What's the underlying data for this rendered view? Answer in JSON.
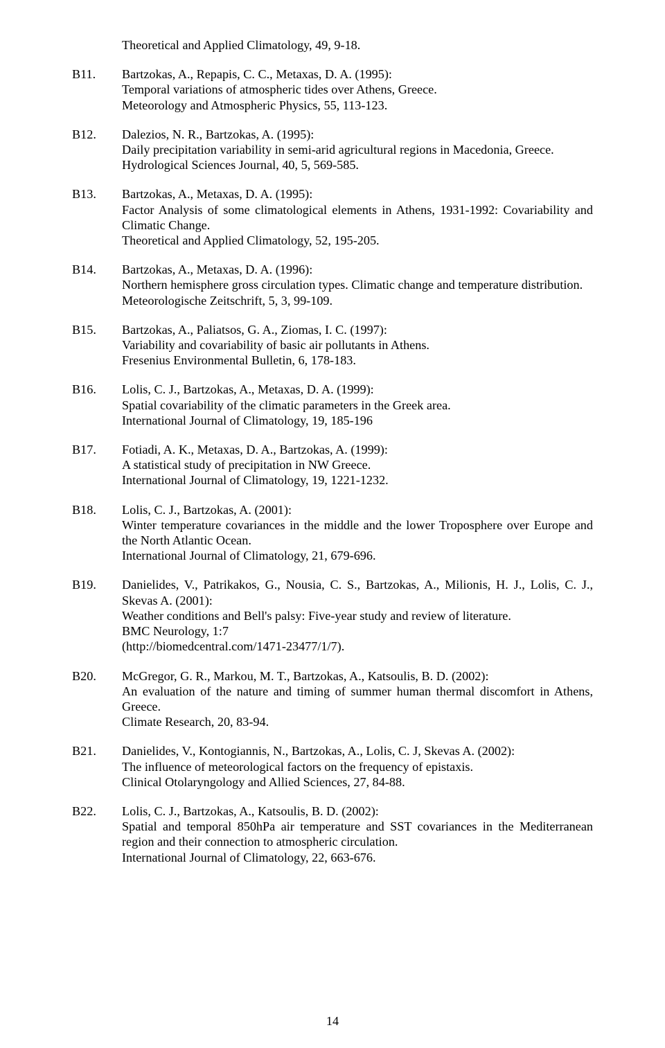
{
  "top_line": "Theoretical and Applied Climatology, 49, 9-18.",
  "entries": [
    {
      "label": "B11.",
      "lines": [
        {
          "text": "Bartzokas, A., Repapis, C. C., Metaxas, D. A. (1995):",
          "justify": false
        },
        {
          "text": "Temporal variations of atmospheric tides over Athens, Greece.",
          "justify": false
        },
        {
          "text": "Meteorology and Atmospheric Physics, 55, 113-123.",
          "justify": false
        }
      ]
    },
    {
      "label": "B12.",
      "lines": [
        {
          "text": "Dalezios, N. R., Bartzokas, A. (1995):",
          "justify": false
        },
        {
          "text": "Daily precipitation variability in semi-arid agricultural regions in Macedonia, Greece.",
          "justify": false
        },
        {
          "text": "Hydrological Sciences Journal, 40, 5, 569-585.",
          "justify": false
        }
      ]
    },
    {
      "label": "B13.",
      "lines": [
        {
          "text": "Bartzokas, A., Metaxas, D. A. (1995):",
          "justify": false
        },
        {
          "text": "Factor Analysis of some climatological elements in Athens, 1931-1992: Covariability and Climatic Change.",
          "justify": true
        },
        {
          "text": "Theoretical and Applied Climatology, 52, 195-205.",
          "justify": false
        }
      ]
    },
    {
      "label": "B14.",
      "lines": [
        {
          "text": "Bartzokas, A., Metaxas, D. A. (1996):",
          "justify": false
        },
        {
          "text": "Northern hemisphere gross circulation types. Climatic change and temperature distribution.",
          "justify": false
        },
        {
          "text": "Meteorologische Zeitschrift, 5, 3, 99-109.",
          "justify": false
        }
      ]
    },
    {
      "label": "B15.",
      "lines": [
        {
          "text": "Bartzokas, A., Paliatsos, G. A., Ziomas, I. C. (1997):",
          "justify": false
        },
        {
          "text": "Variability and covariability of basic air pollutants in Athens.",
          "justify": false
        },
        {
          "text": "Fresenius Environmental Bulletin, 6, 178-183.",
          "justify": false
        }
      ]
    },
    {
      "label": "B16.",
      "lines": [
        {
          "text": "Lolis, C. J., Bartzokas, A., Metaxas, D. A. (1999):",
          "justify": false
        },
        {
          "text": "Spatial covariability of the climatic parameters in the Greek area.",
          "justify": false
        },
        {
          "text": "International Journal of Climatology, 19, 185-196",
          "justify": false
        }
      ]
    },
    {
      "label": "B17.",
      "lines": [
        {
          "text": "Fotiadi, A. K., Metaxas, D. A., Bartzokas, A. (1999):",
          "justify": false
        },
        {
          "text": "A statistical study of precipitation in NW Greece.",
          "justify": false
        },
        {
          "text": "International Journal of Climatology, 19, 1221-1232.",
          "justify": false
        }
      ]
    },
    {
      "label": "B18.",
      "lines": [
        {
          "text": "Lolis, C. J., Bartzokas, A. (2001):",
          "justify": false
        },
        {
          "text": "Winter temperature covariances in the middle and the lower Troposphere over Europe and the North Atlantic Ocean.",
          "justify": true
        },
        {
          "text": "International Journal of Climatology, 21, 679-696.",
          "justify": false
        }
      ]
    },
    {
      "label": "B19.",
      "lines": [
        {
          "text": "Danielides, V., Patrikakos, G., Nousia, C. S., Bartzokas, A., Milionis, H. J., Lolis, C. J., Skevas A. (2001):",
          "justify": true
        },
        {
          "text": "Weather conditions and Bell's palsy: Five-year study and review of literature.",
          "justify": false
        },
        {
          "text": "BMC Neurology, 1:7",
          "justify": false
        },
        {
          "text": "(http://biomedcentral.com/1471-23477/1/7).",
          "justify": false
        }
      ]
    },
    {
      "label": "B20.",
      "lines": [
        {
          "text": "McGregor, G. R., Markou, M. T., Bartzokas, A., Katsoulis, B. D. (2002):",
          "justify": false
        },
        {
          "text": "An evaluation of the nature and timing of summer human thermal discomfort in Athens, Greece.",
          "justify": true
        },
        {
          "text": "Climate Research, 20, 83-94.",
          "justify": false
        }
      ]
    },
    {
      "label": "B21.",
      "lines": [
        {
          "text": "Danielides, V., Kontogiannis, N., Bartzokas, A., Lolis, C. J, Skevas A. (2002):",
          "justify": false
        },
        {
          "text": "The influence of meteorological factors on the frequency of epistaxis.",
          "justify": false
        },
        {
          "text": "Clinical Otolaryngology and Allied Sciences, 27, 84-88.",
          "justify": false
        }
      ]
    },
    {
      "label": "B22.",
      "lines": [
        {
          "text": "Lolis, C. J., Bartzokas, A., Katsoulis, B. D. (2002):",
          "justify": false
        },
        {
          "text": "Spatial and temporal 850hPa air temperature and SST covariances in the Mediterranean region and their connection to atmospheric circulation.",
          "justify": true
        },
        {
          "text": "International Journal of Climatology, 22, 663-676.",
          "justify": false
        }
      ]
    }
  ],
  "page_number": "14"
}
